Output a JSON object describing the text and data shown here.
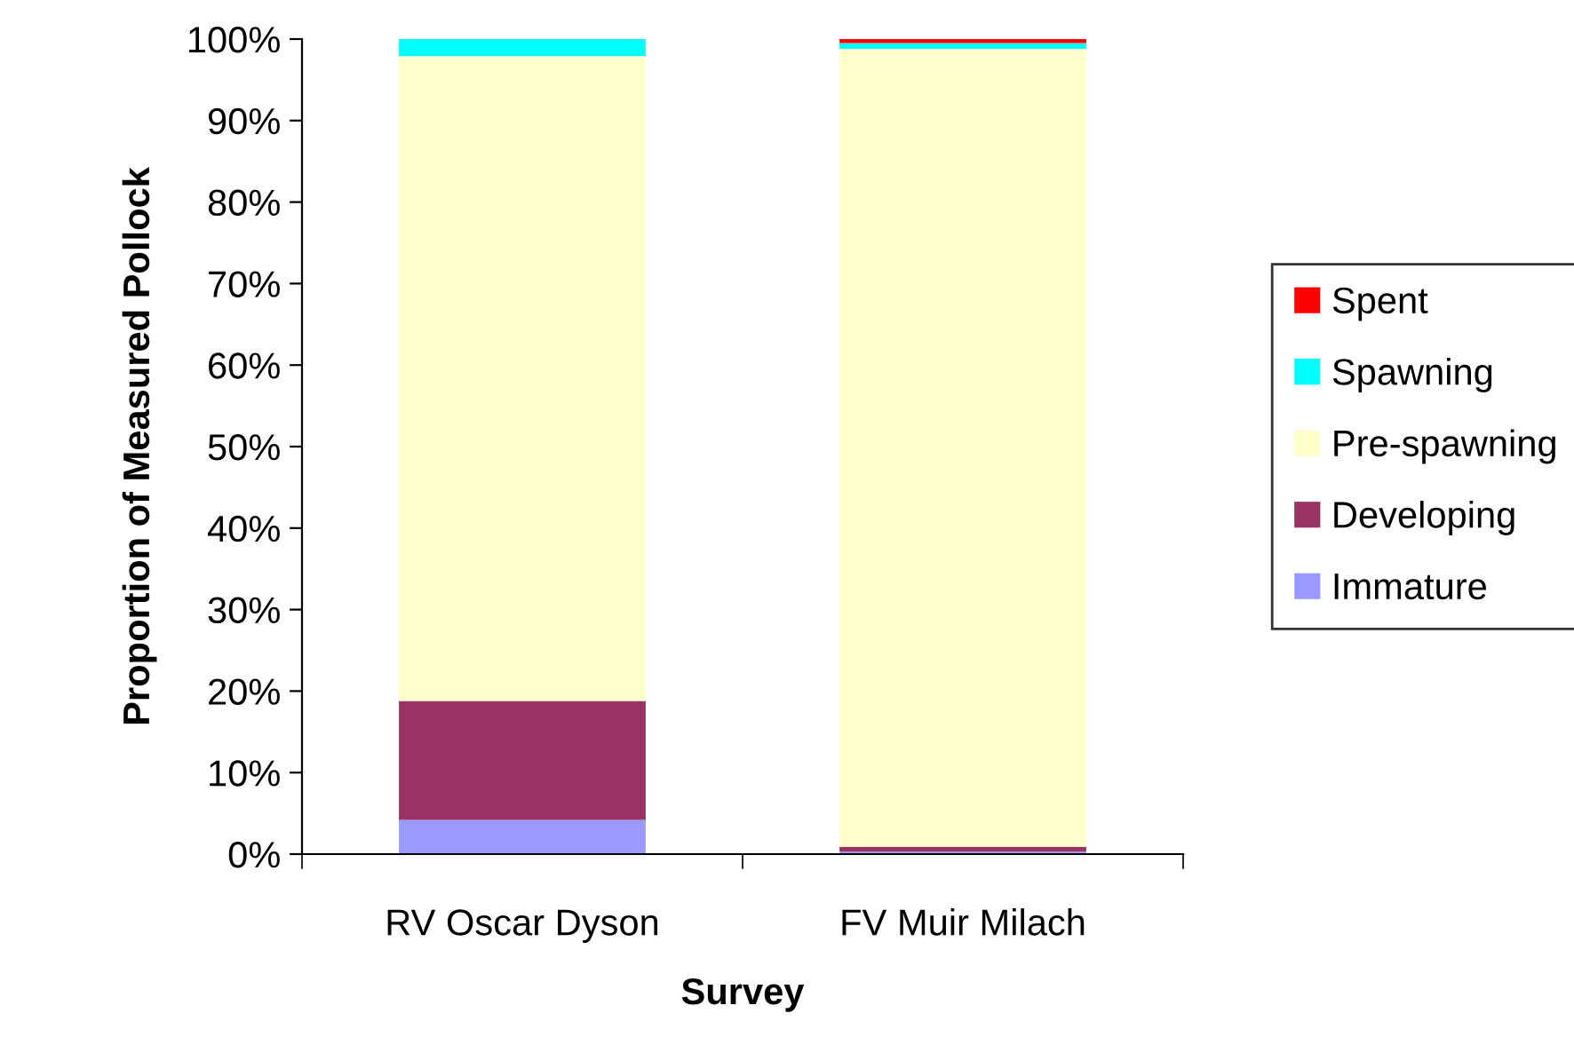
{
  "chart_data": {
    "type": "bar",
    "stacked": true,
    "xlabel": "Survey",
    "ylabel": "Proportion of Measured Pollock",
    "categories": [
      "RV Oscar Dyson",
      "FV Muir Milach"
    ],
    "series": [
      {
        "name": "Immature",
        "color": "#9999ff",
        "values": [
          4.2,
          0.3
        ]
      },
      {
        "name": "Developing",
        "color": "#993366",
        "values": [
          14.6,
          0.6
        ]
      },
      {
        "name": "Pre-spawning",
        "color": "#ffffcc",
        "values": [
          79.1,
          97.9
        ]
      },
      {
        "name": "Spawning",
        "color": "#00ffff",
        "values": [
          2.1,
          0.7
        ]
      },
      {
        "name": "Spent",
        "color": "#ff0000",
        "values": [
          0,
          0.5
        ]
      }
    ],
    "ylim": [
      0,
      100
    ],
    "yticks": [
      {
        "value": 0,
        "label": "0%"
      },
      {
        "value": 10,
        "label": "10%"
      },
      {
        "value": 20,
        "label": "20%"
      },
      {
        "value": 30,
        "label": "30%"
      },
      {
        "value": 40,
        "label": "40%"
      },
      {
        "value": 50,
        "label": "50%"
      },
      {
        "value": 60,
        "label": "60%"
      },
      {
        "value": 70,
        "label": "70%"
      },
      {
        "value": 80,
        "label": "80%"
      },
      {
        "value": 90,
        "label": "90%"
      },
      {
        "value": 100,
        "label": "100%"
      }
    ],
    "grid": false,
    "legend": "right"
  }
}
